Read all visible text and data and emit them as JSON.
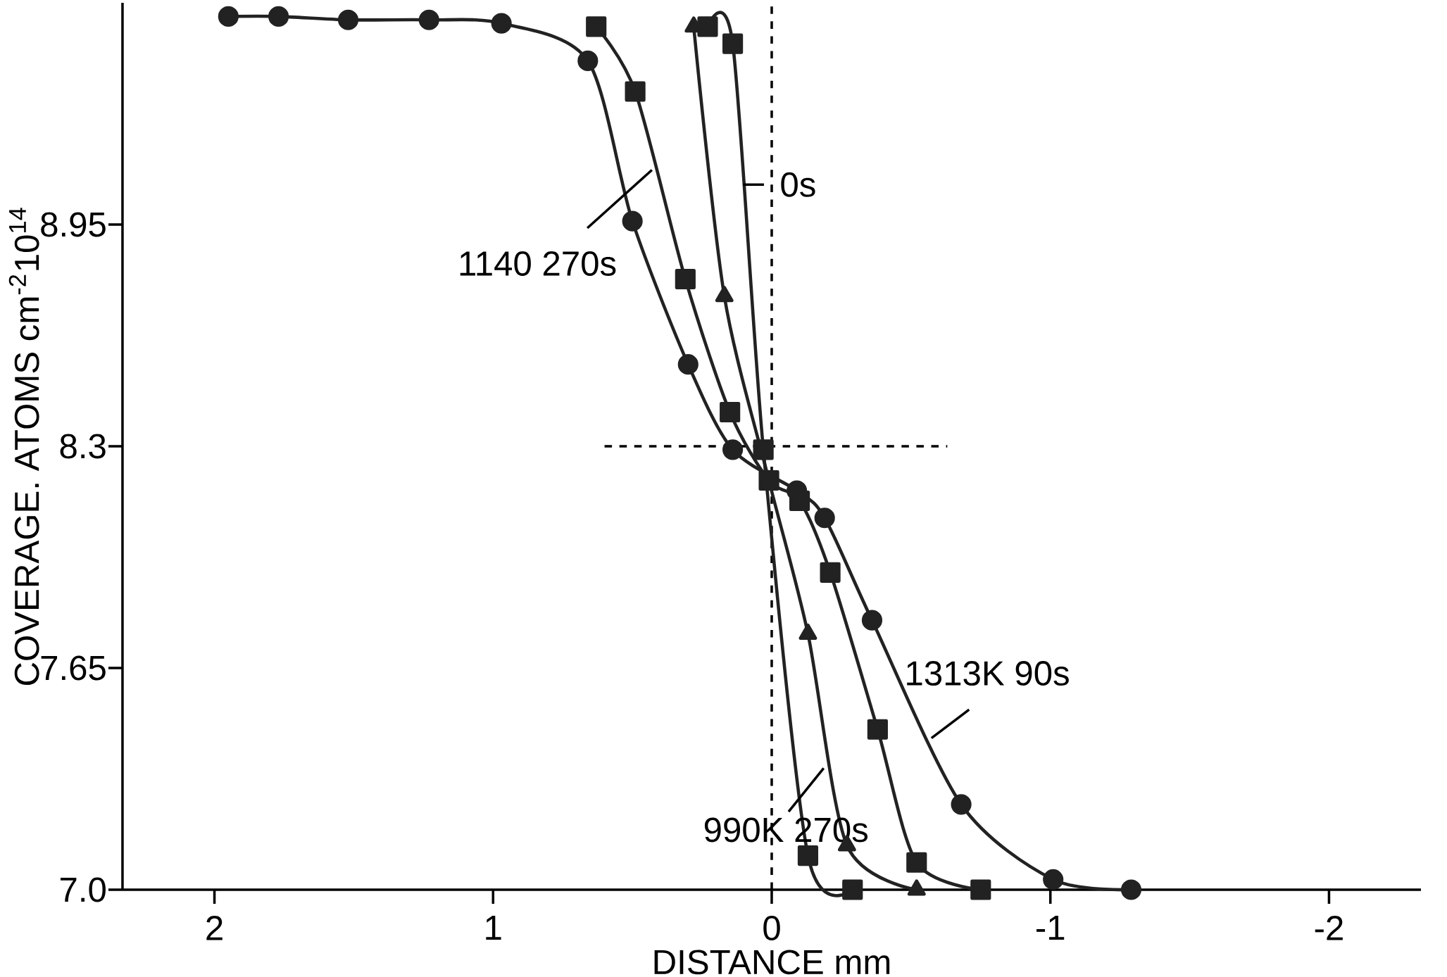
{
  "chart_data": {
    "type": "line",
    "xlabel": "DISTANCE   mm",
    "ylabel": "COVERAGE. ATOMS cm$^{-2}$10$^{14}$",
    "xlim": [
      2.33,
      -2.33
    ],
    "ylim": [
      7.0,
      9.6
    ],
    "xticks": [
      2,
      1,
      0,
      -1,
      -2
    ],
    "yticks": [
      {
        "value": 7.0,
        "label": "7.0"
      },
      7.65,
      8.3,
      8.95
    ],
    "line_style": "solid",
    "series": [
      {
        "color": "#222222",
        "marker": "circle",
        "x": [
          1.95,
          1.77,
          1.52,
          1.23,
          0.97,
          0.66,
          0.5,
          0.3,
          0.14,
          -0.09,
          -0.19,
          -0.36,
          -0.68,
          -1.01,
          -1.29
        ],
        "values": [
          9.56,
          9.56,
          9.55,
          9.55,
          9.54,
          9.43,
          8.96,
          8.54,
          8.29,
          8.17,
          8.09,
          7.79,
          7.25,
          7.03,
          7.0
        ]
      },
      {
        "color": "#222222",
        "marker": "square",
        "x": [
          0.63,
          0.49,
          0.31,
          0.15,
          0.01,
          -0.1,
          -0.21,
          -0.38,
          -0.52,
          -0.75
        ],
        "values": [
          9.53,
          9.34,
          8.79,
          8.4,
          8.2,
          8.14,
          7.93,
          7.47,
          7.08,
          7.0
        ]
      },
      {
        "color": "#222222",
        "marker": "triangle",
        "x": [
          0.28,
          0.17,
          0.01,
          -0.13,
          -0.27,
          -0.52
        ],
        "values": [
          9.53,
          8.74,
          8.2,
          7.75,
          7.13,
          7.0
        ]
      },
      {
        "color": "#222222",
        "marker": "square",
        "x": [
          0.23,
          0.14,
          0.03,
          -0.13,
          -0.29
        ],
        "values": [
          9.53,
          9.48,
          8.29,
          7.1,
          7.0
        ]
      }
    ],
    "ref_lines": [
      {
        "axis": "x",
        "value": 0,
        "line_style": "dashed"
      },
      {
        "axis": "y",
        "value": 8.3,
        "line_style": "dashed"
      }
    ],
    "annotations": [
      "0s",
      {
        "text": "1140  270s",
        "x": 0.43,
        "y": 9.11
      },
      "1313K  90s",
      "990K 270s"
    ]
  }
}
